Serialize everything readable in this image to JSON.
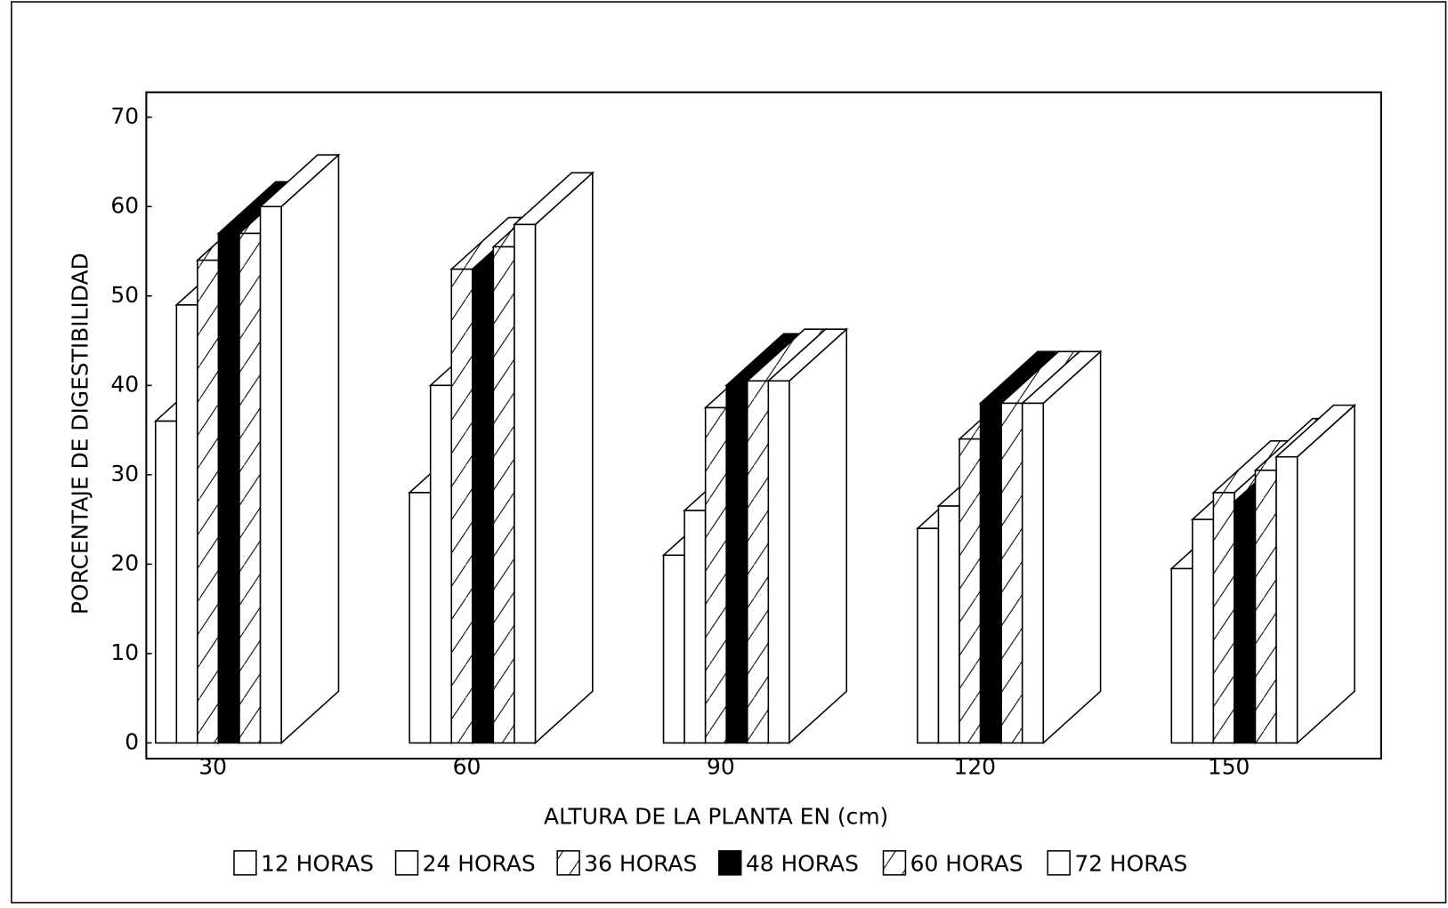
{
  "chart_data": {
    "type": "bar3d",
    "xlabel": "ALTURA DE LA PLANTA EN (cm)",
    "ylabel": "PORCENTAJE DE DIGESTIBILIDAD",
    "categories": [
      "30",
      "60",
      "90",
      "120",
      "150"
    ],
    "series": [
      {
        "name": "12 HORAS",
        "color": "#ffffff",
        "pattern": "none",
        "values": [
          36,
          28,
          21,
          24,
          19.5
        ]
      },
      {
        "name": "24 HORAS",
        "color": "#ffffff",
        "pattern": "none",
        "values": [
          49,
          40,
          26,
          26.5,
          25
        ]
      },
      {
        "name": "36 HORAS",
        "color": "#ffffff",
        "pattern": "hatch",
        "values": [
          54,
          53,
          37.5,
          34,
          28
        ]
      },
      {
        "name": "48 HORAS",
        "color": "#000000",
        "pattern": "none",
        "values": [
          57,
          53,
          40,
          38,
          27
        ]
      },
      {
        "name": "60 HORAS",
        "color": "#ffffff",
        "pattern": "hatch",
        "values": [
          57,
          55.5,
          40.5,
          38,
          30.5
        ]
      },
      {
        "name": "72 HORAS",
        "color": "#ffffff",
        "pattern": "none",
        "values": [
          60,
          58,
          40.5,
          38,
          32
        ]
      }
    ],
    "ylim": [
      0,
      70
    ],
    "yticks": [
      0,
      10,
      20,
      30,
      40,
      50,
      60,
      70
    ],
    "grid": false,
    "legend": "bottom"
  }
}
